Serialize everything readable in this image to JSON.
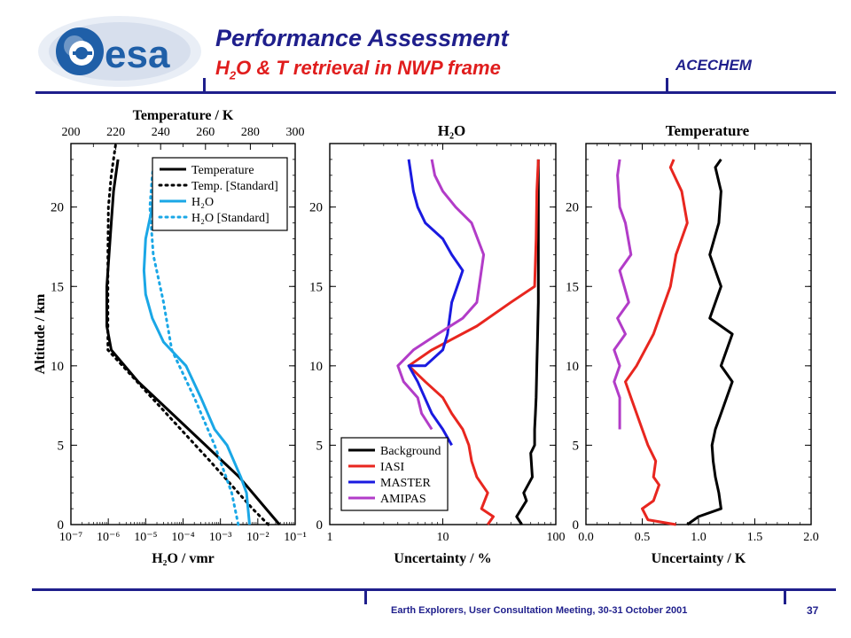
{
  "header": {
    "title": "Performance Assessment",
    "subtitle_main": "H",
    "subtitle_sub": "2",
    "subtitle_rest": "O & T retrieval in NWP frame",
    "project": "ACECHEM",
    "logo_text": "esa"
  },
  "footer": {
    "text": "Earth Explorers, User Consultation Meeting, 30-31 October 2001",
    "page_number": "37"
  },
  "colors": {
    "brand": "#1f1f8c",
    "accent": "#e01d1d",
    "black": "#000000",
    "cyan": "#1aa7e6",
    "red": "#e8261f",
    "blue": "#1a1ae0",
    "purple": "#b23cc8"
  },
  "chart_data": [
    {
      "type": "line",
      "ylabel": "Altitude / km",
      "ylim": [
        0,
        24
      ],
      "yticks": [
        "0",
        "5",
        "10",
        "15",
        "20"
      ],
      "top_axis_label": "Temperature / K",
      "top_xlim": [
        200,
        300
      ],
      "top_ticks": [
        "200",
        "220",
        "240",
        "260",
        "280",
        "300"
      ],
      "bottom_axis_label": "H₂O / vmr",
      "bottom_xscale": "log",
      "bottom_xlim": [
        1e-07,
        0.1
      ],
      "bottom_ticks": [
        "10⁻⁷",
        "10⁻⁶",
        "10⁻⁵",
        "10⁻⁴",
        "10⁻³",
        "10⁻²",
        "10⁻¹"
      ],
      "legend_position": "top-right",
      "series": [
        {
          "name": "Temperature",
          "axis": "temperature",
          "style": "solid",
          "color": "#000000",
          "x": [
            293,
            287,
            275,
            260,
            245,
            230,
            218,
            216,
            216,
            217,
            218,
            219,
            221
          ],
          "y": [
            0,
            1,
            3,
            5,
            7,
            9,
            11,
            12.5,
            15,
            17,
            19,
            21,
            23
          ]
        },
        {
          "name": "Temp. [Standard]",
          "axis": "temperature",
          "style": "dotted",
          "color": "#000000",
          "x": [
            288,
            281,
            262,
            249,
            236,
            223,
            216.5,
            216.5,
            216.5,
            216.5,
            216.7,
            218,
            220
          ],
          "y": [
            0,
            1,
            4,
            6,
            8,
            10,
            11,
            13,
            15,
            17,
            20,
            22,
            24
          ]
        },
        {
          "name": "H₂O",
          "axis": "vmr",
          "style": "solid",
          "color": "#1aa7e6",
          "x": [
            0.006,
            0.005,
            0.0035,
            0.0015,
            0.0007,
            0.0003,
            0.00012,
            3e-05,
            1.5e-05,
            1e-05,
            9e-06,
            1e-05,
            1.5e-05,
            1.8e-05,
            1.8e-05
          ],
          "y": [
            0,
            2,
            3,
            5,
            6,
            8,
            10,
            11.5,
            13,
            14.5,
            16,
            18,
            20,
            22,
            23
          ]
        },
        {
          "name": "H₂O [Standard]",
          "axis": "vmr",
          "style": "dotted",
          "color": "#1aa7e6",
          "x": [
            0.003,
            0.002,
            0.0007,
            0.0002,
            5e-05,
            3e-05,
            1.6e-05,
            1.3e-05,
            1.5e-05,
            1.7e-05
          ],
          "y": [
            0,
            2,
            5,
            8,
            11,
            14,
            17,
            20,
            22,
            23
          ]
        }
      ]
    },
    {
      "type": "line",
      "title": "H₂O",
      "xlabel": "Uncertainty / %",
      "xscale": "log",
      "xlim": [
        1,
        100
      ],
      "xticks": [
        "1",
        "10",
        "100"
      ],
      "ylim": [
        0,
        24
      ],
      "yticks": [
        "0",
        "5",
        "10",
        "15",
        "20"
      ],
      "legend_position": "bottom-left",
      "series": [
        {
          "name": "Background",
          "color": "#000000",
          "x": [
            50,
            45,
            55,
            52,
            62,
            60,
            65,
            65,
            66,
            67,
            68,
            69,
            70,
            70,
            70,
            70
          ],
          "y": [
            0,
            0.5,
            1.5,
            2,
            3,
            4.5,
            5,
            6,
            7,
            8,
            10,
            12,
            14,
            16,
            20,
            23
          ]
        },
        {
          "name": "IASI",
          "color": "#e8261f",
          "x": [
            25,
            28,
            22,
            25,
            20,
            18,
            17,
            16,
            15,
            12,
            10,
            7,
            5,
            8,
            20,
            40,
            65,
            67,
            68,
            70
          ],
          "y": [
            0,
            0.5,
            1,
            2,
            3,
            4,
            5,
            5.5,
            6,
            7,
            8,
            9,
            10,
            11,
            12.5,
            14,
            15,
            18,
            21,
            23
          ]
        },
        {
          "name": "MASTER",
          "color": "#1a1ae0",
          "x": [
            12,
            10,
            8,
            6,
            5,
            7,
            10,
            11,
            12,
            15,
            12,
            10,
            7,
            6,
            5.5,
            5
          ],
          "y": [
            5,
            6,
            7,
            9,
            10,
            10,
            11,
            12,
            14,
            16,
            17,
            18,
            19,
            20,
            21,
            23
          ]
        },
        {
          "name": "AMIPAS",
          "color": "#b23cc8",
          "x": [
            8,
            6.5,
            6,
            4.5,
            4,
            5.5,
            9,
            15,
            20,
            23,
            18,
            13,
            10,
            8.5,
            8
          ],
          "y": [
            6,
            7,
            8,
            9,
            10,
            11,
            12,
            13,
            14,
            17,
            19,
            20,
            21,
            22,
            23
          ]
        }
      ]
    },
    {
      "type": "line",
      "title": "Temperature",
      "xlabel": "Uncertainty / K",
      "xlim": [
        0,
        2
      ],
      "xticks": [
        "0.0",
        "0.5",
        "1.0",
        "1.5",
        "2.0"
      ],
      "ylim": [
        0,
        24
      ],
      "yticks": [
        "0",
        "5",
        "10",
        "15",
        "20"
      ],
      "series": [
        {
          "name": "Background",
          "color": "#000000",
          "x": [
            0.9,
            1.0,
            1.2,
            1.18,
            1.15,
            1.13,
            1.12,
            1.15,
            1.2,
            1.3,
            1.2,
            1.3,
            1.1,
            1.2,
            1.1,
            1.18,
            1.2,
            1.15,
            1.2
          ],
          "y": [
            0,
            0.5,
            1,
            2,
            3,
            4,
            5,
            6,
            7,
            9,
            10,
            12,
            13,
            15,
            17,
            19,
            21,
            22.5,
            23
          ]
        },
        {
          "name": "IASI",
          "color": "#e8261f",
          "x": [
            0.8,
            0.55,
            0.5,
            0.6,
            0.65,
            0.6,
            0.62,
            0.55,
            0.5,
            0.4,
            0.35,
            0.45,
            0.6,
            0.65,
            0.75,
            0.8,
            0.9,
            0.85,
            0.75,
            0.78
          ],
          "y": [
            0,
            0.3,
            1,
            1.5,
            2.5,
            3,
            4,
            5,
            6,
            8,
            9,
            10,
            12,
            13,
            15,
            17,
            19,
            21,
            22.5,
            23
          ]
        },
        {
          "name": "AMIPAS",
          "color": "#b23cc8",
          "x": [
            0.3,
            0.3,
            0.25,
            0.3,
            0.25,
            0.35,
            0.28,
            0.38,
            0.3,
            0.4,
            0.35,
            0.3,
            0.28,
            0.3
          ],
          "y": [
            6,
            8,
            9,
            10,
            11,
            12,
            13,
            14,
            16,
            17,
            19,
            20,
            22,
            23
          ]
        }
      ]
    }
  ]
}
